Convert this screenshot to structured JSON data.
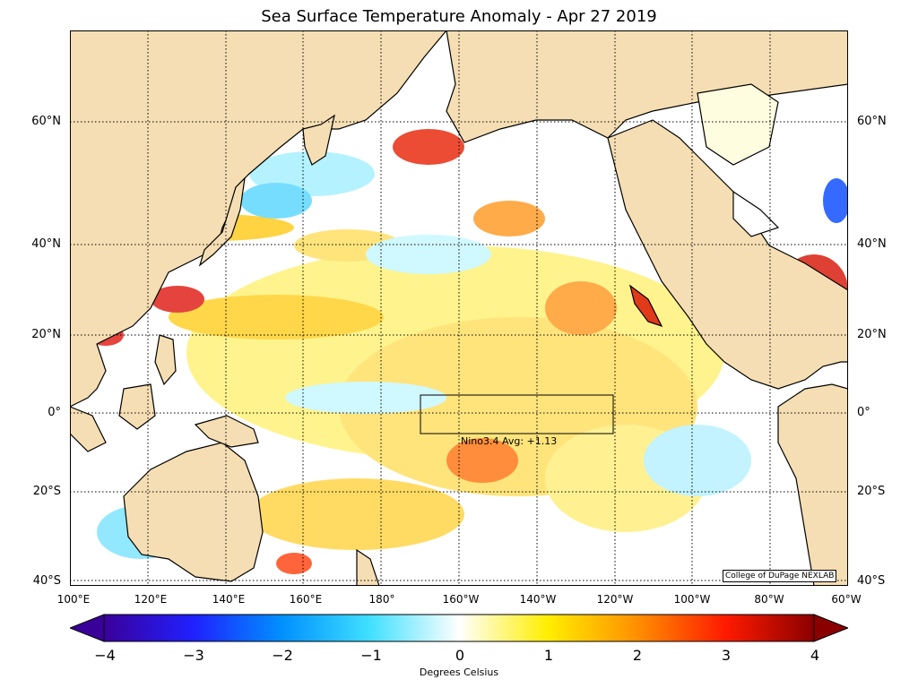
{
  "title": "Sea Surface Temperature Anomaly - Apr 27 2019",
  "map": {
    "lat_labels": [
      "60°N",
      "40°N",
      "20°N",
      "0°",
      "20°S",
      "40°S"
    ],
    "lon_labels": [
      "100°E",
      "120°E",
      "140°E",
      "160°E",
      "180°",
      "160°W",
      "140°W",
      "120°W",
      "100°W",
      "80°W",
      "60°W"
    ],
    "nino_box_label": "Nino3.4 Avg: +1.13",
    "credit": "College of DuPage NEXLAB",
    "land_color": "#f5deb3",
    "ocean_color": "#ffffff"
  },
  "colorbar": {
    "ticks": [
      "−4",
      "−3",
      "−2",
      "−1",
      "0",
      "1",
      "2",
      "3",
      "4"
    ],
    "label": "Degrees Celsius",
    "colors": [
      "#3a009a",
      "#2020ff",
      "#0090ff",
      "#40e0ff",
      "#ffffff",
      "#ffee00",
      "#ff9000",
      "#ff1a00",
      "#8a0000"
    ]
  }
}
